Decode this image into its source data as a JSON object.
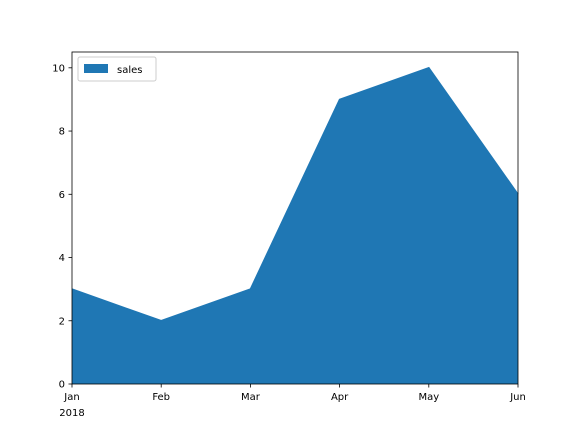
{
  "chart_data": {
    "type": "area",
    "categories": [
      "Jan",
      "Feb",
      "Mar",
      "Apr",
      "May",
      "Jun"
    ],
    "x_year_label": "2018",
    "series": [
      {
        "name": "sales",
        "values": [
          3,
          2,
          3,
          9,
          10,
          6
        ],
        "color": "#1f77b4"
      }
    ],
    "ylim": [
      0,
      10.5
    ],
    "yticks": [
      0,
      2,
      4,
      6,
      8,
      10
    ],
    "grid": false,
    "legend": "top-left"
  }
}
